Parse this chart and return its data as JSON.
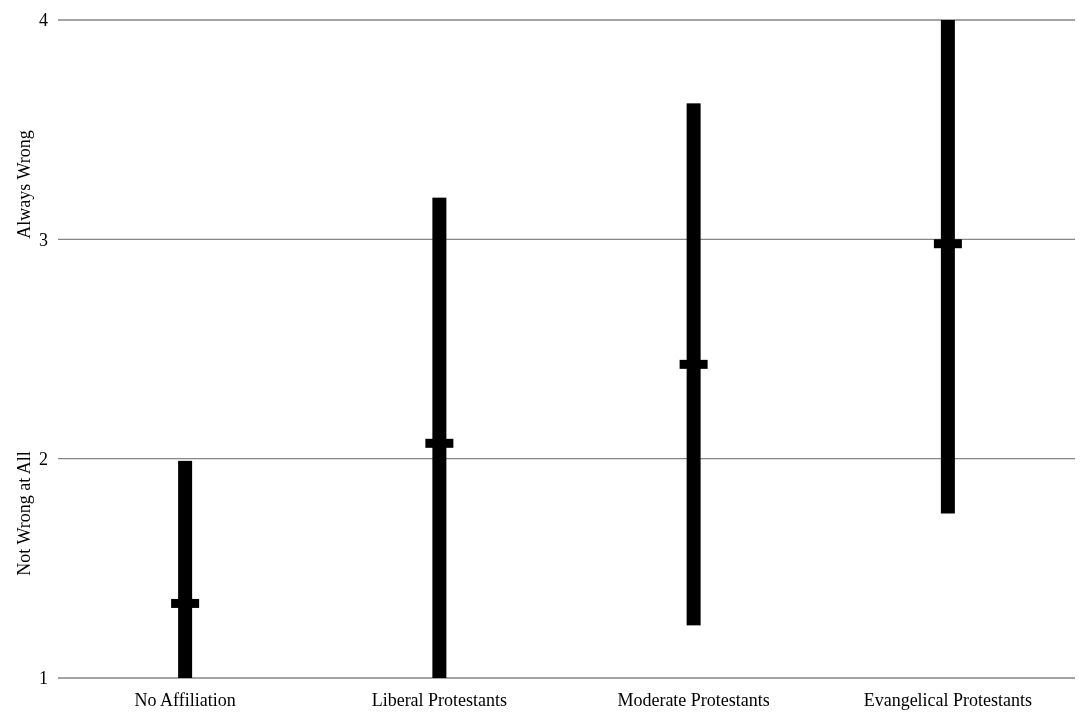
{
  "chart_data": {
    "type": "bar",
    "categories": [
      "No Affiliation",
      "Liberal Protestants",
      "Moderate Protestants",
      "Evangelical Protestants"
    ],
    "series": [
      {
        "type": "bar",
        "color": "#000000",
        "base": [
          1,
          1,
          1.24,
          1.75
        ],
        "values": [
          0.99,
          2.19,
          2.38,
          2.25
        ]
      },
      {
        "type": "scatter",
        "color": "#000000",
        "x": [
          "No Affiliation",
          "Liberal Protestants",
          "Moderate Protestants",
          "Evangelical Protestants"
        ],
        "values": [
          1.34,
          2.07,
          2.43,
          2.98
        ]
      }
    ],
    "ylim": [
      1,
      4
    ],
    "yticks": [
      1,
      2,
      3,
      4
    ],
    "grid": "y",
    "annotations": [
      "Always Wrong",
      "Not Wrong at All"
    ]
  }
}
